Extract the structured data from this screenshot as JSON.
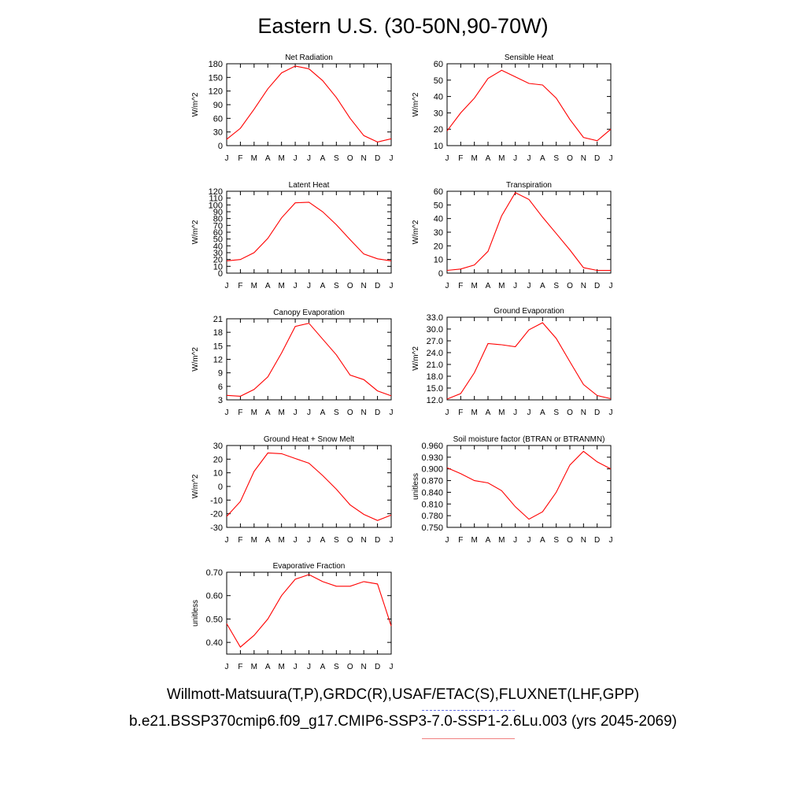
{
  "figure": {
    "title": "Eastern U.S. (30-50N,90-70W)",
    "caption_line1": "Willmott-Matsuura(T,P),GRDC(R),USAF/ETAC(S),FLUXNET(LHF,GPP)",
    "caption_line2": "b.e21.BSSP370cmip6.f09_g17.CMIP6-SSP3-7.0-SSP1-2.6Lu.003 (yrs 2045-2069)",
    "line_color": "#ff0000",
    "obs_legend_color": "#6670e0",
    "model_legend_color": "#f08080"
  },
  "chart_data": [
    {
      "type": "line",
      "title": "Net Radiation",
      "ylabel": "W/m^2",
      "categories": [
        "J",
        "F",
        "M",
        "A",
        "M",
        "J",
        "J",
        "A",
        "S",
        "O",
        "N",
        "D",
        "J"
      ],
      "ylim": [
        0,
        180
      ],
      "yticks": [
        "0",
        "30",
        "60",
        "90",
        "120",
        "150",
        "180"
      ],
      "values": [
        14,
        38,
        80,
        125,
        160,
        175,
        169,
        143,
        106,
        60,
        22,
        8,
        15
      ]
    },
    {
      "type": "line",
      "title": "Sensible Heat",
      "ylabel": "W/m^2",
      "categories": [
        "J",
        "F",
        "M",
        "A",
        "M",
        "J",
        "J",
        "A",
        "S",
        "O",
        "N",
        "D",
        "J"
      ],
      "ylim": [
        10,
        60
      ],
      "yticks": [
        "10",
        "20",
        "30",
        "40",
        "50",
        "60"
      ],
      "values": [
        19,
        30,
        39,
        51,
        56,
        52,
        48,
        47,
        39,
        26,
        15,
        13,
        20
      ]
    },
    {
      "type": "line",
      "title": "Latent Heat",
      "ylabel": "W/m^2",
      "categories": [
        "J",
        "F",
        "M",
        "A",
        "M",
        "J",
        "J",
        "A",
        "S",
        "O",
        "N",
        "D",
        "J"
      ],
      "ylim": [
        0,
        120
      ],
      "yticks": [
        "0",
        "10",
        "20",
        "30",
        "40",
        "50",
        "60",
        "70",
        "80",
        "90",
        "100",
        "110",
        "120"
      ],
      "values": [
        18,
        20,
        30,
        51,
        81,
        103,
        104,
        90,
        71,
        49,
        28,
        21,
        18
      ]
    },
    {
      "type": "line",
      "title": "Transpiration",
      "ylabel": "W/m^2",
      "categories": [
        "J",
        "F",
        "M",
        "A",
        "M",
        "J",
        "J",
        "A",
        "S",
        "O",
        "N",
        "D",
        "J"
      ],
      "ylim": [
        0,
        60
      ],
      "yticks": [
        "0",
        "10",
        "20",
        "30",
        "40",
        "50",
        "60"
      ],
      "values": [
        2,
        3,
        6,
        16,
        42,
        59,
        54,
        41,
        29,
        17,
        4,
        2,
        2
      ]
    },
    {
      "type": "line",
      "title": "Canopy Evaporation",
      "ylabel": "W/m^2",
      "categories": [
        "J",
        "F",
        "M",
        "A",
        "M",
        "J",
        "J",
        "A",
        "S",
        "O",
        "N",
        "D",
        "J"
      ],
      "ylim": [
        3,
        21
      ],
      "yticks": [
        "3",
        "6",
        "9",
        "12",
        "15",
        "18",
        "21"
      ],
      "values": [
        4.0,
        3.8,
        5.3,
        8.1,
        13.4,
        19.3,
        20.0,
        16.5,
        13.0,
        8.5,
        7.5,
        5.0,
        3.9
      ]
    },
    {
      "type": "line",
      "title": "Ground Evaporation",
      "ylabel": "W/m^2",
      "categories": [
        "J",
        "F",
        "M",
        "A",
        "M",
        "J",
        "J",
        "A",
        "S",
        "O",
        "N",
        "D",
        "J"
      ],
      "ylim": [
        12,
        33
      ],
      "yticks": [
        "12.0",
        "15.0",
        "18.0",
        "21.0",
        "24.0",
        "27.0",
        "30.0",
        "33.0"
      ],
      "values": [
        12.2,
        13.6,
        18.9,
        26.3,
        26.0,
        25.5,
        29.8,
        31.6,
        27.6,
        21.7,
        15.9,
        13.1,
        12.3
      ]
    },
    {
      "type": "line",
      "title": "Ground Heat + Snow Melt",
      "ylabel": "W/m^2",
      "categories": [
        "J",
        "F",
        "M",
        "A",
        "M",
        "J",
        "J",
        "A",
        "S",
        "O",
        "N",
        "D",
        "J"
      ],
      "ylim": [
        -30,
        30
      ],
      "yticks": [
        "-30",
        "-20",
        "-10",
        "0",
        "10",
        "20",
        "30"
      ],
      "values": [
        -22,
        -11,
        11,
        24.5,
        24,
        20.5,
        17,
        8,
        -2,
        -13.5,
        -20.5,
        -25,
        -21
      ]
    },
    {
      "type": "line",
      "title": "Soil moisture factor (BTRAN or BTRANMN)",
      "ylabel": "unitless",
      "categories": [
        "J",
        "F",
        "M",
        "A",
        "M",
        "J",
        "J",
        "A",
        "S",
        "O",
        "N",
        "D",
        "J"
      ],
      "ylim": [
        0.75,
        0.96
      ],
      "yticks": [
        "0.750",
        "0.780",
        "0.810",
        "0.840",
        "0.870",
        "0.900",
        "0.930",
        "0.960"
      ],
      "values": [
        0.903,
        0.888,
        0.87,
        0.864,
        0.844,
        0.803,
        0.771,
        0.79,
        0.84,
        0.91,
        0.945,
        0.918,
        0.9
      ]
    },
    {
      "type": "line",
      "title": "Evaporative Fraction",
      "ylabel": "unitless",
      "categories": [
        "J",
        "F",
        "M",
        "A",
        "M",
        "J",
        "J",
        "A",
        "S",
        "O",
        "N",
        "D",
        "J"
      ],
      "ylim": [
        0.35,
        0.7
      ],
      "yticks": [
        "0.40",
        "0.50",
        "0.60",
        "0.70"
      ],
      "values": [
        0.48,
        0.38,
        0.43,
        0.5,
        0.6,
        0.67,
        0.69,
        0.66,
        0.64,
        0.64,
        0.66,
        0.65,
        0.47
      ]
    }
  ]
}
